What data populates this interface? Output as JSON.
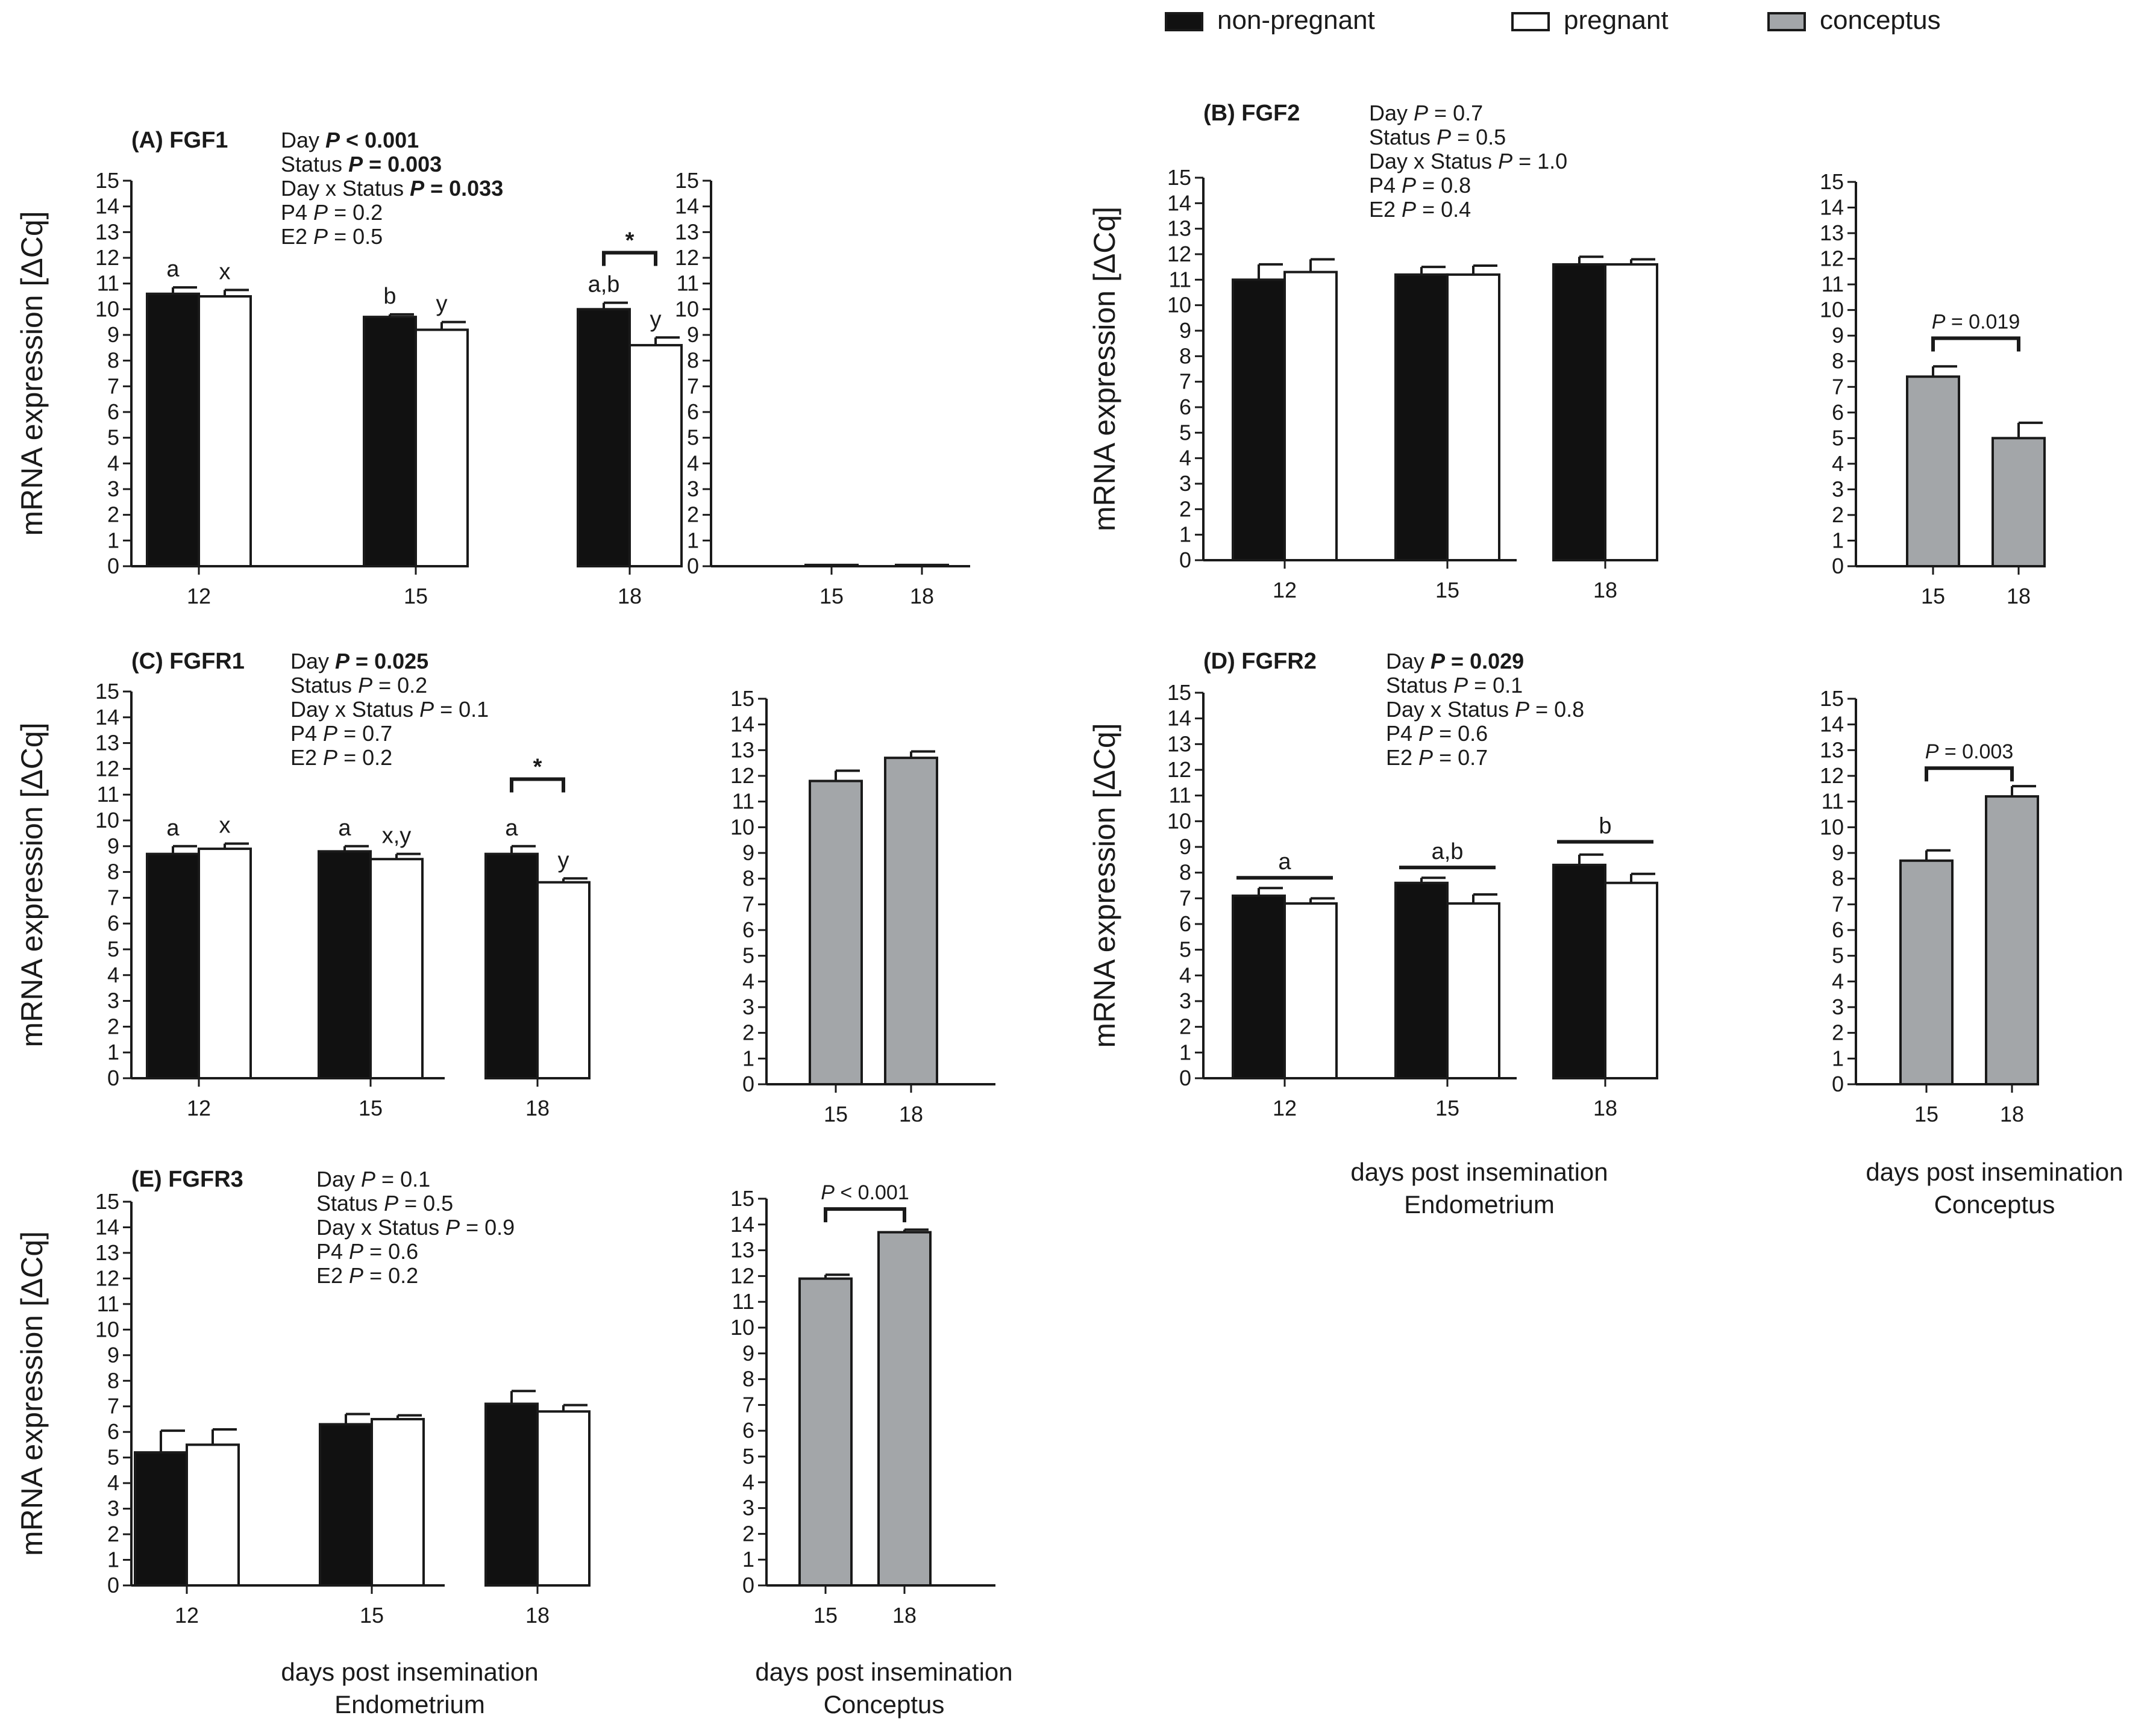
{
  "colors": {
    "non_pregnant": "#111111",
    "pregnant": "#ffffff",
    "conceptus": "#a3a6a9",
    "axis": "#1a1a1a"
  },
  "legend": [
    {
      "label": "non-pregnant",
      "color": "#111111"
    },
    {
      "label": "pregnant",
      "color": "#ffffff"
    },
    {
      "label": "conceptus",
      "color": "#a3a6a9"
    }
  ],
  "x_titles": {
    "endometrium": [
      "days post insemination",
      "Endometrium"
    ],
    "conceptus": [
      "days post insemination",
      "Conceptus"
    ]
  },
  "chart_data": [
    {
      "type": "bar",
      "id": "A-endometrium",
      "title": "(A) FGF1",
      "stats": [
        [
          {
            "t": "Day "
          },
          {
            "t": "P",
            "i": true,
            "b": true
          },
          {
            "t": " < 0.001",
            "b": true
          }
        ],
        [
          {
            "t": "Status "
          },
          {
            "t": "P",
            "i": true,
            "b": true
          },
          {
            "t": " = 0.003",
            "b": true
          }
        ],
        [
          {
            "t": "Day x Status "
          },
          {
            "t": "P",
            "i": true,
            "b": true
          },
          {
            "t": " = 0.033",
            "b": true
          }
        ],
        [
          {
            "t": "P4 "
          },
          {
            "t": "P",
            "i": true
          },
          {
            "t": " = 0.2"
          }
        ],
        [
          {
            "t": "E2 "
          },
          {
            "t": "P",
            "i": true
          },
          {
            "t": " = 0.5"
          }
        ]
      ],
      "ylabel": "mRNA expression [ΔCq]",
      "ylim": [
        0,
        15
      ],
      "categories": [
        "12",
        "15",
        "18"
      ],
      "series": [
        {
          "name": "non-pregnant",
          "values": [
            10.6,
            9.7,
            10.0
          ],
          "errors": [
            0.25,
            0.1,
            0.25
          ],
          "letters": [
            "a",
            "b",
            "a,b"
          ]
        },
        {
          "name": "pregnant",
          "values": [
            10.5,
            9.2,
            8.6
          ],
          "errors": [
            0.25,
            0.3,
            0.3
          ],
          "letters": [
            "x",
            "y",
            "y"
          ]
        }
      ],
      "brackets": [
        {
          "category": "18",
          "label": "*",
          "y": 12.2
        }
      ]
    },
    {
      "type": "bar",
      "id": "A-conceptus",
      "ylim": [
        0,
        15
      ],
      "categories": [
        "15",
        "18"
      ],
      "series": [
        {
          "name": "conceptus",
          "values": [
            0.05,
            0.05
          ],
          "errors": [
            0,
            0
          ]
        }
      ]
    },
    {
      "type": "bar",
      "id": "B-endometrium",
      "title": "(B) FGF2",
      "stats": [
        [
          {
            "t": "Day "
          },
          {
            "t": "P",
            "i": true
          },
          {
            "t": " = 0.7"
          }
        ],
        [
          {
            "t": "Status "
          },
          {
            "t": "P",
            "i": true
          },
          {
            "t": " = 0.5"
          }
        ],
        [
          {
            "t": "Day x Status "
          },
          {
            "t": "P",
            "i": true
          },
          {
            "t": " = 1.0"
          }
        ],
        [
          {
            "t": "P4 "
          },
          {
            "t": "P",
            "i": true
          },
          {
            "t": " = 0.8"
          }
        ],
        [
          {
            "t": "E2 "
          },
          {
            "t": "P",
            "i": true
          },
          {
            "t": " = 0.4"
          }
        ]
      ],
      "ylabel": "mRNA expression [ΔCq]",
      "ylim": [
        0,
        15
      ],
      "categories": [
        "12",
        "15",
        "18"
      ],
      "series": [
        {
          "name": "non-pregnant",
          "values": [
            11.0,
            11.2,
            11.6
          ],
          "errors": [
            0.6,
            0.3,
            0.3
          ]
        },
        {
          "name": "pregnant",
          "values": [
            11.3,
            11.2,
            11.6
          ],
          "errors": [
            0.5,
            0.35,
            0.2
          ]
        }
      ]
    },
    {
      "type": "bar",
      "id": "B-conceptus",
      "ylim": [
        0,
        15
      ],
      "categories": [
        "15",
        "18"
      ],
      "series": [
        {
          "name": "conceptus",
          "values": [
            7.4,
            5.0
          ],
          "errors": [
            0.4,
            0.6
          ]
        }
      ],
      "p_bracket": {
        "label": "P = 0.019",
        "y": 8.9
      }
    },
    {
      "type": "bar",
      "id": "C-endometrium",
      "title": "(C) FGFR1",
      "stats": [
        [
          {
            "t": "Day "
          },
          {
            "t": "P",
            "i": true,
            "b": true
          },
          {
            "t": " = 0.025",
            "b": true
          }
        ],
        [
          {
            "t": "Status "
          },
          {
            "t": "P",
            "i": true
          },
          {
            "t": " = 0.2"
          }
        ],
        [
          {
            "t": "Day x Status "
          },
          {
            "t": "P",
            "i": true
          },
          {
            "t": " = 0.1"
          }
        ],
        [
          {
            "t": "P4 "
          },
          {
            "t": "P",
            "i": true
          },
          {
            "t": " = 0.7"
          }
        ],
        [
          {
            "t": "E2 "
          },
          {
            "t": "P",
            "i": true
          },
          {
            "t": " = 0.2"
          }
        ]
      ],
      "ylabel": "mRNA expression [ΔCq]",
      "ylim": [
        0,
        15
      ],
      "categories": [
        "12",
        "15",
        "18"
      ],
      "series": [
        {
          "name": "non-pregnant",
          "values": [
            8.7,
            8.8,
            8.7
          ],
          "errors": [
            0.3,
            0.2,
            0.3
          ],
          "letters": [
            "a",
            "a",
            "a"
          ]
        },
        {
          "name": "pregnant",
          "values": [
            8.9,
            8.5,
            7.6
          ],
          "errors": [
            0.2,
            0.2,
            0.15
          ],
          "letters": [
            "x",
            "x,y",
            "y"
          ]
        }
      ],
      "brackets": [
        {
          "category": "18",
          "label": "*",
          "y": 11.6
        }
      ]
    },
    {
      "type": "bar",
      "id": "C-conceptus",
      "ylim": [
        0,
        15
      ],
      "categories": [
        "15",
        "18"
      ],
      "series": [
        {
          "name": "conceptus",
          "values": [
            11.8,
            12.7
          ],
          "errors": [
            0.4,
            0.25
          ]
        }
      ]
    },
    {
      "type": "bar",
      "id": "D-endometrium",
      "title": "(D) FGFR2",
      "stats": [
        [
          {
            "t": "Day "
          },
          {
            "t": "P",
            "i": true,
            "b": true
          },
          {
            "t": " = 0.029",
            "b": true
          }
        ],
        [
          {
            "t": "Status "
          },
          {
            "t": "P",
            "i": true
          },
          {
            "t": " = 0.1"
          }
        ],
        [
          {
            "t": "Day x Status "
          },
          {
            "t": "P",
            "i": true
          },
          {
            "t": " = 0.8"
          }
        ],
        [
          {
            "t": "P4 "
          },
          {
            "t": "P",
            "i": true
          },
          {
            "t": " = 0.6"
          }
        ],
        [
          {
            "t": "E2 "
          },
          {
            "t": "P",
            "i": true
          },
          {
            "t": " = 0.7"
          }
        ]
      ],
      "ylabel": "mRNA expression [ΔCq]",
      "ylim": [
        0,
        15
      ],
      "categories": [
        "12",
        "15",
        "18"
      ],
      "series": [
        {
          "name": "non-pregnant",
          "values": [
            7.1,
            7.6,
            8.3
          ],
          "errors": [
            0.3,
            0.2,
            0.4
          ]
        },
        {
          "name": "pregnant",
          "values": [
            6.8,
            6.8,
            7.6
          ],
          "errors": [
            0.2,
            0.35,
            0.35
          ]
        }
      ],
      "group_lines": [
        {
          "category": "12",
          "label": "a",
          "y": 7.8
        },
        {
          "category": "15",
          "label": "a,b",
          "y": 8.2
        },
        {
          "category": "18",
          "label": "b",
          "y": 9.2
        }
      ]
    },
    {
      "type": "bar",
      "id": "D-conceptus",
      "ylim": [
        0,
        15
      ],
      "categories": [
        "15",
        "18"
      ],
      "series": [
        {
          "name": "conceptus",
          "values": [
            8.7,
            11.2
          ],
          "errors": [
            0.4,
            0.4
          ]
        }
      ],
      "p_bracket": {
        "label": "P = 0.003",
        "y": 12.3
      }
    },
    {
      "type": "bar",
      "id": "E-endometrium",
      "title": "(E) FGFR3",
      "stats": [
        [
          {
            "t": "Day "
          },
          {
            "t": "P",
            "i": true
          },
          {
            "t": " = 0.1"
          }
        ],
        [
          {
            "t": "Status "
          },
          {
            "t": "P",
            "i": true
          },
          {
            "t": " = 0.5"
          }
        ],
        [
          {
            "t": "Day x Status "
          },
          {
            "t": "P",
            "i": true
          },
          {
            "t": " = 0.9"
          }
        ],
        [
          {
            "t": "P4 "
          },
          {
            "t": "P",
            "i": true
          },
          {
            "t": " = 0.6"
          }
        ],
        [
          {
            "t": "E2 "
          },
          {
            "t": "P",
            "i": true
          },
          {
            "t": " = 0.2"
          }
        ]
      ],
      "ylabel": "mRNA expression [ΔCq]",
      "ylim": [
        0,
        15
      ],
      "categories": [
        "12",
        "15",
        "18"
      ],
      "series": [
        {
          "name": "non-pregnant",
          "values": [
            5.2,
            6.3,
            7.1
          ],
          "errors": [
            0.85,
            0.4,
            0.5
          ]
        },
        {
          "name": "pregnant",
          "values": [
            5.5,
            6.5,
            6.8
          ],
          "errors": [
            0.6,
            0.15,
            0.25
          ]
        }
      ]
    },
    {
      "type": "bar",
      "id": "E-conceptus",
      "ylim": [
        0,
        15
      ],
      "categories": [
        "15",
        "18"
      ],
      "series": [
        {
          "name": "conceptus",
          "values": [
            11.9,
            13.7
          ],
          "errors": [
            0.15,
            0.1
          ]
        }
      ],
      "p_bracket": {
        "label": "P < 0.001",
        "y": 14.6
      }
    }
  ]
}
